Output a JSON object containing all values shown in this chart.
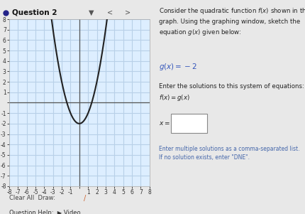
{
  "title": "Question 2",
  "graph_xlim": [
    -8,
    8
  ],
  "graph_ylim": [
    -8,
    8
  ],
  "grid_color": "#b8d0e8",
  "parabola_color": "#222222",
  "parabola_a": 1,
  "parabola_b": 0,
  "parabola_c": -2,
  "bg_graph": "#ddeeff",
  "bg_right": "#f0f0f0",
  "text_color_main": "#222222",
  "text_color_blue": "#4466aa",
  "text_color_eq": "#5577cc",
  "right_text_1": "Consider the quadratic function $f(x)$ shown in the\ngraph. Using the graphing window, sketch the\nequation $g(x)$ given below:",
  "right_text_g": "$g(x) = -2$",
  "right_text_2": "Enter the solutions to this system of equations:\n$f(x) = g(x)$",
  "right_text_3": "$x =$",
  "right_text_4": "Enter multiple solutions as a comma-separated list.\nIf no solution exists, enter \"DNE\".",
  "bottom_text_1": "Clear All  Draw:",
  "bottom_text_2": "Question Help:  ▶ Video",
  "tick_major": 1,
  "axis_color": "#555555"
}
